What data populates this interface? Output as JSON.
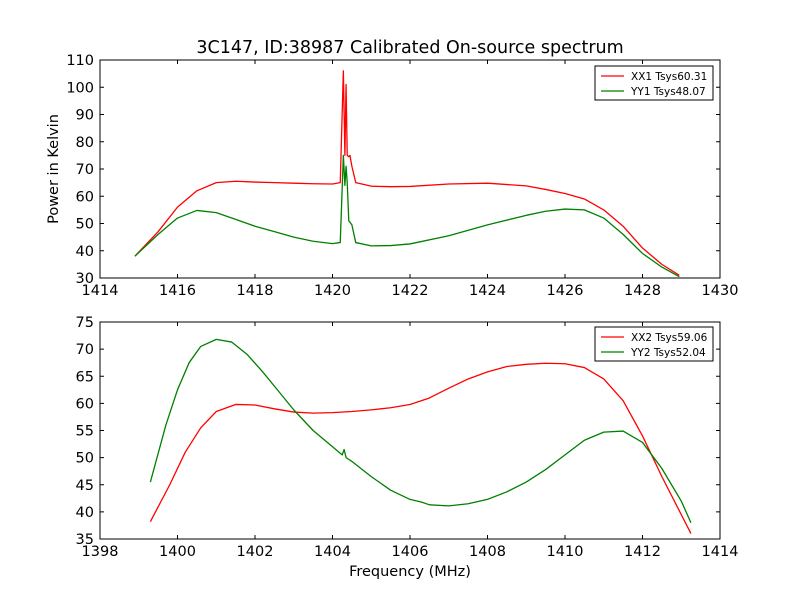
{
  "title": "3C147, ID:38987 Calibrated On-source spectrum",
  "colors": {
    "xx": "#ff0000",
    "yy": "#008000"
  },
  "chart_data": [
    {
      "type": "line",
      "title": "3C147, ID:38987 Calibrated On-source spectrum",
      "xlabel": "",
      "ylabel": "Power in Kelvin",
      "xlim": [
        1414,
        1430
      ],
      "ylim": [
        30,
        110
      ],
      "xticks": [
        "1414",
        "1416",
        "1418",
        "1420",
        "1422",
        "1424",
        "1426",
        "1428",
        "1430"
      ],
      "yticks": [
        "30",
        "40",
        "50",
        "60",
        "70",
        "80",
        "90",
        "100",
        "110"
      ],
      "legend": "top-right",
      "series": [
        {
          "name": "XX1 Tsys60.31",
          "color": "#ff0000",
          "x": [
            1414.9,
            1415.5,
            1416.0,
            1416.5,
            1417.0,
            1417.5,
            1418.0,
            1418.5,
            1419.0,
            1419.5,
            1420.0,
            1420.2,
            1420.28,
            1420.32,
            1420.35,
            1420.38,
            1420.42,
            1420.45,
            1420.5,
            1420.6,
            1421.0,
            1421.5,
            1422.0,
            1423.0,
            1424.0,
            1425.0,
            1425.5,
            1426.0,
            1426.5,
            1427.0,
            1427.5,
            1428.0,
            1428.5,
            1428.95
          ],
          "y": [
            38,
            47,
            56,
            62,
            65,
            65.5,
            65.2,
            65,
            64.8,
            64.6,
            64.5,
            65,
            106,
            75,
            101,
            75,
            74.5,
            75,
            71,
            65,
            63.7,
            63.5,
            63.6,
            64.5,
            64.8,
            63.8,
            62.5,
            61,
            59,
            55,
            49,
            41,
            35,
            31
          ]
        },
        {
          "name": "YY1 Tsys48.07",
          "color": "#008000",
          "x": [
            1414.9,
            1415.5,
            1416.0,
            1416.5,
            1417.0,
            1417.5,
            1418.0,
            1418.5,
            1419.0,
            1419.5,
            1420.0,
            1420.2,
            1420.28,
            1420.32,
            1420.35,
            1420.38,
            1420.42,
            1420.45,
            1420.5,
            1420.6,
            1421.0,
            1421.5,
            1422.0,
            1423.0,
            1424.0,
            1425.0,
            1425.5,
            1426.0,
            1426.5,
            1427.0,
            1427.5,
            1428.0,
            1428.5,
            1428.95
          ],
          "y": [
            38,
            46,
            52,
            54.8,
            54,
            51.5,
            49,
            47,
            45,
            43.5,
            42.6,
            43,
            75,
            64,
            71,
            65,
            51,
            50.5,
            49.5,
            43,
            41.8,
            41.9,
            42.5,
            45.5,
            49.5,
            53,
            54.5,
            55.3,
            55,
            52,
            46,
            39,
            34,
            30.5
          ]
        }
      ]
    },
    {
      "type": "line",
      "title": "",
      "xlabel": "Frequency (MHz)",
      "ylabel": "",
      "xlim": [
        1398,
        1414
      ],
      "ylim": [
        35,
        75
      ],
      "xticks": [
        "1398",
        "1400",
        "1402",
        "1404",
        "1406",
        "1408",
        "1410",
        "1412",
        "1414"
      ],
      "yticks": [
        "35",
        "40",
        "45",
        "50",
        "55",
        "60",
        "65",
        "70",
        "75"
      ],
      "legend": "top-right",
      "series": [
        {
          "name": "XX2 Tsys59.06",
          "color": "#ff0000",
          "x": [
            1399.3,
            1399.8,
            1400.2,
            1400.6,
            1401.0,
            1401.5,
            1402.0,
            1402.5,
            1403.0,
            1403.5,
            1404.0,
            1404.5,
            1405.0,
            1405.5,
            1406.0,
            1406.3,
            1406.5,
            1407.0,
            1407.5,
            1408.0,
            1408.5,
            1409.0,
            1409.5,
            1410.0,
            1410.5,
            1411.0,
            1411.5,
            1412.0,
            1412.5,
            1413.0,
            1413.25
          ],
          "y": [
            38.2,
            45,
            51,
            55.5,
            58.5,
            59.8,
            59.7,
            59,
            58.4,
            58.2,
            58.3,
            58.5,
            58.8,
            59.2,
            59.8,
            60.5,
            61,
            62.8,
            64.5,
            65.8,
            66.8,
            67.2,
            67.4,
            67.3,
            66.6,
            64.5,
            60.5,
            54,
            46.5,
            39.5,
            36
          ]
        },
        {
          "name": "YY2 Tsys52.04",
          "color": "#008000",
          "x": [
            1399.3,
            1399.7,
            1400.0,
            1400.3,
            1400.6,
            1401.0,
            1401.4,
            1401.8,
            1402.2,
            1402.6,
            1403.0,
            1403.5,
            1404.0,
            1404.25,
            1404.3,
            1404.35,
            1404.5,
            1405.0,
            1405.5,
            1406.0,
            1406.3,
            1406.5,
            1407.0,
            1407.5,
            1408.0,
            1408.5,
            1409.0,
            1409.5,
            1410.0,
            1410.5,
            1411.0,
            1411.5,
            1412.0,
            1412.5,
            1413.0,
            1413.25
          ],
          "y": [
            45.5,
            56,
            62.5,
            67.5,
            70.5,
            71.8,
            71.3,
            69,
            65.8,
            62.3,
            58.8,
            55,
            52,
            50.5,
            51.5,
            50,
            49.3,
            46.5,
            44,
            42.3,
            41.8,
            41.3,
            41.1,
            41.5,
            42.3,
            43.7,
            45.5,
            47.8,
            50.5,
            53.2,
            54.7,
            54.9,
            52.8,
            48,
            42,
            38
          ]
        }
      ]
    }
  ]
}
